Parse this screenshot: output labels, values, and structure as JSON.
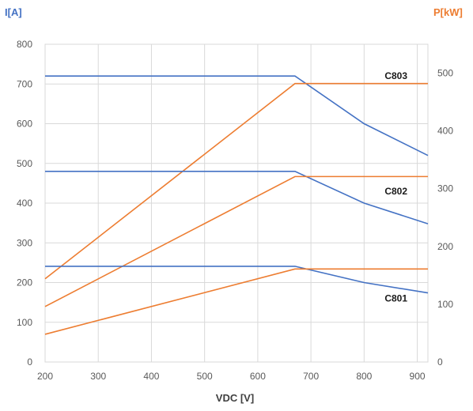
{
  "chart_data": {
    "type": "line",
    "xlabel": "VDC [V]",
    "ylabel_left": "I[A]",
    "ylabel_right": "P[kW]",
    "xlim": [
      200,
      920
    ],
    "ylim_left": [
      0,
      800
    ],
    "ylim_right": [
      0,
      550
    ],
    "x_ticks": [
      200,
      300,
      400,
      500,
      600,
      700,
      800,
      900
    ],
    "y_left_ticks": [
      0,
      100,
      200,
      300,
      400,
      500,
      600,
      700,
      800
    ],
    "y_right_ticks": [
      0,
      100,
      200,
      300,
      400,
      500
    ],
    "grid": true,
    "colors": {
      "current": "#4472C4",
      "power": "#ED7D31",
      "grid": "#d9d9d9"
    },
    "series": [
      {
        "label": "C803",
        "axis": "left",
        "kind": "current",
        "x": [
          200,
          670,
          800,
          920
        ],
        "y": [
          720,
          720,
          600,
          520
        ]
      },
      {
        "label": "C803",
        "axis": "right",
        "kind": "power",
        "x": [
          200,
          670,
          920
        ],
        "y": [
          144,
          482,
          482
        ]
      },
      {
        "label": "C802",
        "axis": "left",
        "kind": "current",
        "x": [
          200,
          670,
          800,
          920
        ],
        "y": [
          480,
          480,
          400,
          348
        ]
      },
      {
        "label": "C802",
        "axis": "right",
        "kind": "power",
        "x": [
          200,
          670,
          920
        ],
        "y": [
          96,
          321,
          321
        ]
      },
      {
        "label": "C801",
        "axis": "left",
        "kind": "current",
        "x": [
          200,
          670,
          800,
          920
        ],
        "y": [
          241,
          241,
          200,
          174
        ]
      },
      {
        "label": "C801",
        "axis": "right",
        "kind": "power",
        "x": [
          200,
          670,
          920
        ],
        "y": [
          48,
          161,
          161
        ]
      }
    ],
    "series_labels": [
      {
        "text": "C803",
        "x": 860,
        "y": 720
      },
      {
        "text": "C802",
        "x": 860,
        "y": 430
      },
      {
        "text": "C801",
        "x": 860,
        "y": 160
      }
    ]
  }
}
